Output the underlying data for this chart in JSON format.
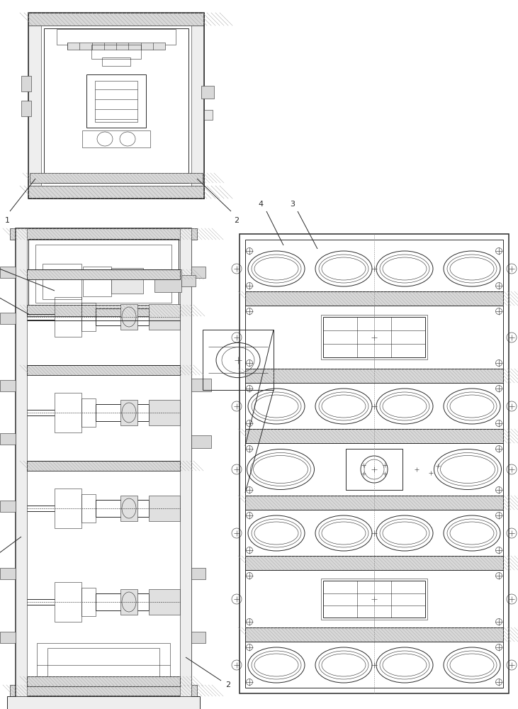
{
  "bg_color": "#ffffff",
  "line_color": "#2a2a2a",
  "lw_thin": 0.4,
  "lw_med": 0.7,
  "lw_thick": 1.1,
  "label_fs": 8,
  "gray_light": "#d8d8d8",
  "gray_med": "#c0c0c0",
  "gray_dark": "#a8a8a8",
  "hatch_color": "#888888"
}
